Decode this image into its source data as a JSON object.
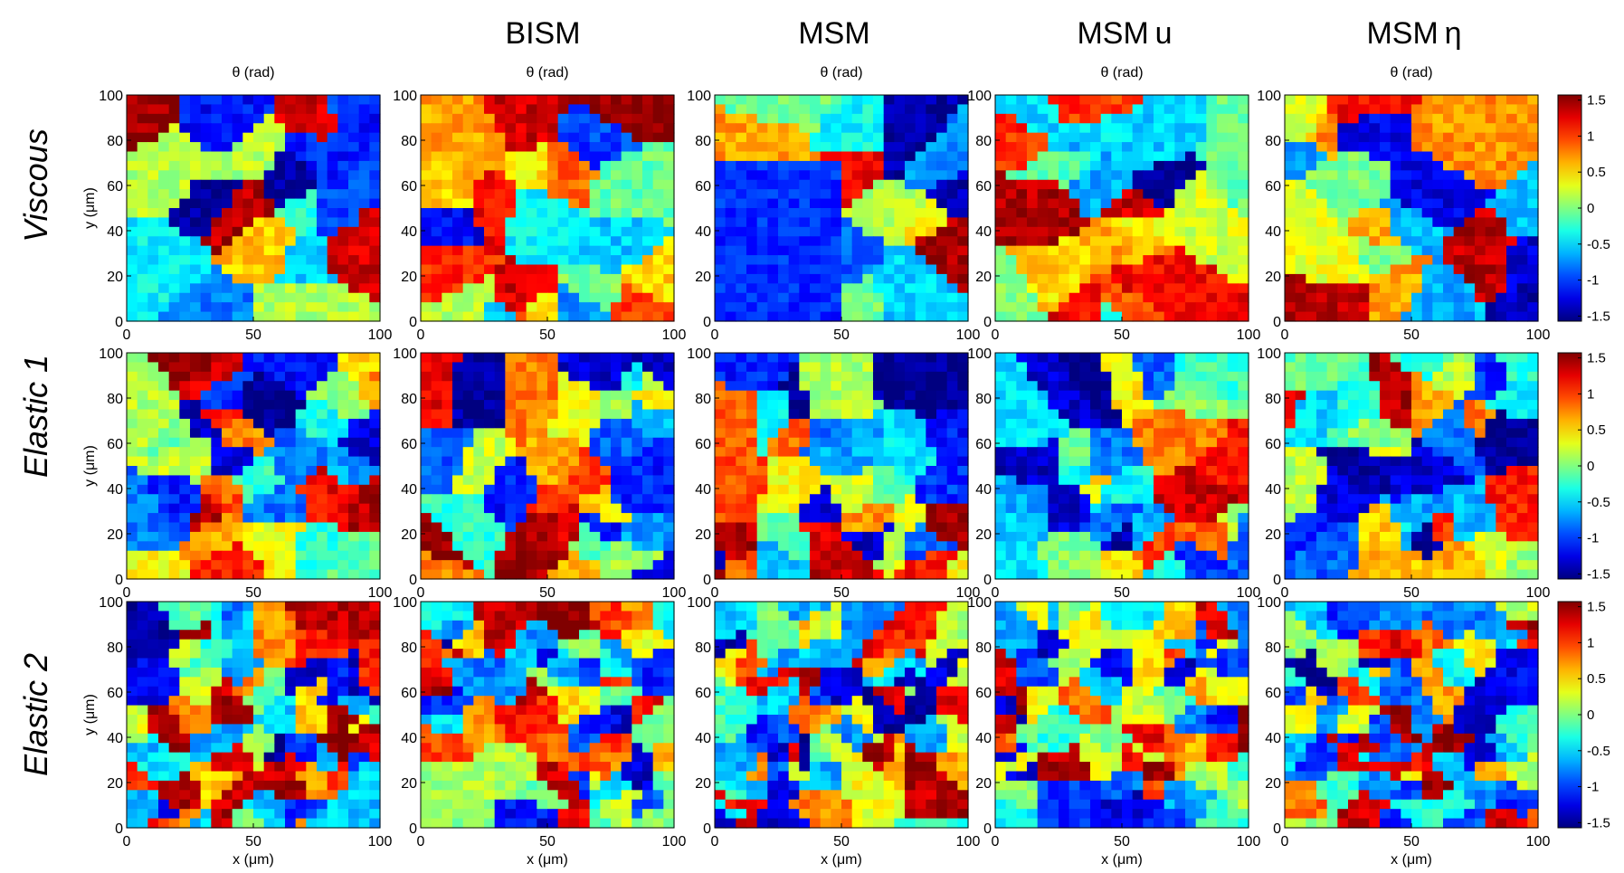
{
  "figure": {
    "column_titles": [
      "BISM",
      "MSM",
      "MSM u",
      "MSM η"
    ],
    "column_title_italic_suffix": [
      "",
      "",
      "u",
      "η"
    ],
    "row_labels": [
      "Viscous",
      "Elastic 1",
      "Elastic 2"
    ]
  },
  "chart_data": {
    "type": "heatmap",
    "layout": "grid",
    "rows": [
      "Viscous",
      "Elastic 1",
      "Elastic 2"
    ],
    "panel_title": "θ (rad)",
    "panel_title_rows": [
      "Viscous"
    ],
    "xlabel": "x (μm)",
    "ylabel": "y (μm)",
    "xlim": [
      0,
      100
    ],
    "ylim": [
      0,
      100
    ],
    "xticks": [
      0,
      50,
      100
    ],
    "yticks": [
      0,
      20,
      40,
      60,
      80,
      100
    ],
    "colormap": "jet",
    "clim": [
      -1.5708,
      1.5708
    ],
    "colorbar_ticks": [
      1.5,
      1,
      0.5,
      0,
      -0.5,
      -1,
      -1.5
    ],
    "colorbar_tick_labels": [
      "1.5",
      "1",
      "0.5",
      "0",
      "-0.5",
      "-1",
      "-1.5"
    ],
    "colors": {
      "jet_dark_red": "#800000",
      "jet_red": "#ff0000",
      "jet_yellow": "#ffff00",
      "jet_cyan": "#00ffff",
      "jet_blue": "#0000ff",
      "jet_dark_blue": "#00008f"
    },
    "grid_resolution": [
      24,
      24
    ]
  }
}
